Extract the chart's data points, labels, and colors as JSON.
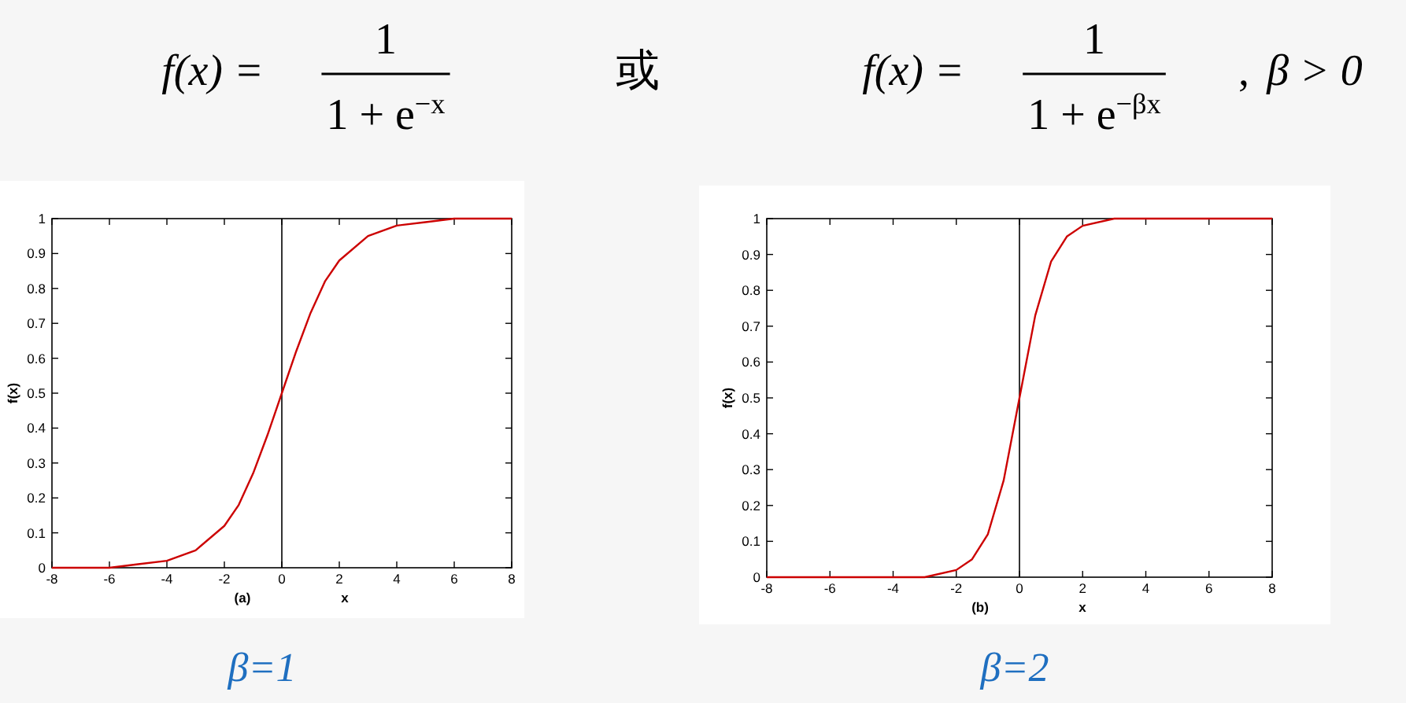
{
  "chart_data": [
    {
      "type": "other",
      "annotations": [
        "f(x) =",
        "1",
        "1 + e$^{−x}$",
        "或",
        "f(x) =",
        "1",
        "1 + e$^{−βx}$",
        ",",
        "β > 0"
      ]
    },
    {
      "type": "line",
      "xlabel": "x",
      "ylabel": "f(x)",
      "annotations": [
        "(a)",
        "β=1"
      ],
      "xlim": [
        -8,
        8
      ],
      "ylim": [
        0,
        1
      ],
      "xticks": [
        -8,
        -6,
        -4,
        -2,
        0,
        2,
        4,
        6,
        8
      ],
      "yticks": [
        0,
        0.1,
        0.2,
        0.3,
        0.4,
        0.5,
        0.6,
        0.7,
        0.8,
        0.9,
        1
      ],
      "ref_lines": [
        {
          "axis": "x",
          "value": 0,
          "color": "#000000"
        }
      ],
      "series": [
        {
          "color": "#cc0000",
          "x": [
            -8,
            -6,
            -5,
            -4,
            -3,
            -2,
            -1.5,
            -1,
            -0.5,
            0,
            0.5,
            1,
            1.5,
            2,
            3,
            4,
            5,
            6,
            8
          ],
          "values": [
            0,
            0,
            0.01,
            0.02,
            0.05,
            0.12,
            0.18,
            0.27,
            0.38,
            0.5,
            0.62,
            0.73,
            0.82,
            0.88,
            0.95,
            0.98,
            0.99,
            1,
            1
          ]
        }
      ]
    },
    {
      "type": "line",
      "xlabel": "x",
      "ylabel": "f(x)",
      "annotations": [
        "(b)",
        "β=2"
      ],
      "xlim": [
        -8,
        8
      ],
      "ylim": [
        0,
        1
      ],
      "xticks": [
        -8,
        -6,
        -4,
        -2,
        0,
        2,
        4,
        6,
        8
      ],
      "yticks": [
        0,
        0.1,
        0.2,
        0.3,
        0.4,
        0.5,
        0.6,
        0.7,
        0.8,
        0.9,
        1
      ],
      "ref_lines": [
        {
          "axis": "x",
          "value": 0,
          "color": "#000000"
        }
      ],
      "series": [
        {
          "color": "#cc0000",
          "x": [
            -8,
            -4,
            -3,
            -2,
            -1.5,
            -1,
            -0.5,
            0,
            0.5,
            1,
            1.5,
            2,
            3,
            4,
            8
          ],
          "values": [
            0,
            0,
            0,
            0.02,
            0.05,
            0.12,
            0.27,
            0.5,
            0.73,
            0.88,
            0.95,
            0.98,
            1,
            1,
            1
          ]
        }
      ]
    }
  ]
}
